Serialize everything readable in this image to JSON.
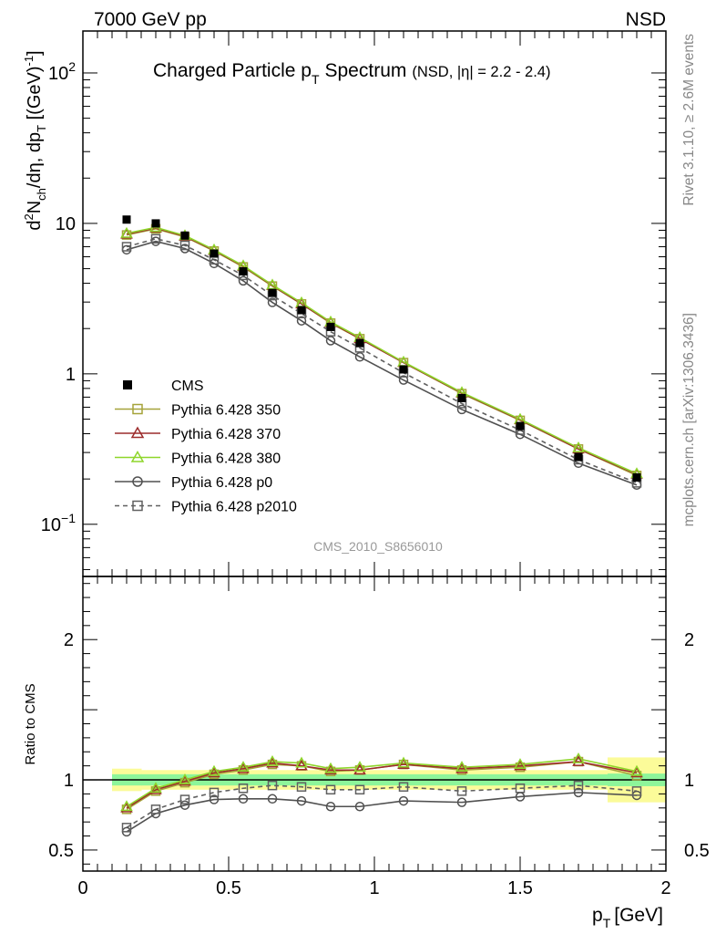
{
  "header": {
    "energy": "7000 GeV pp",
    "process": "NSD"
  },
  "side": {
    "rivet": "Rivet 3.1.10, ≥ 2.6M events",
    "mcplots": "mcplots.cern.ch [arXiv:1306.3436]"
  },
  "chart_data": {
    "type": "scatter",
    "title": "Charged Particle p_T Spectrum (NSD, |η| = 2.2 - 2.4)",
    "title_main": "Charged Particle p",
    "title_main_sub": "T",
    "title_main_tail": "Spectrum",
    "title_extra": "(NSD, |η| = 2.2 - 2.4)",
    "analysis_id": "CMS_2010_S8656010",
    "xlabel": "p_T [GeV]",
    "ylabel": "d²N_ch/dη, dp_T [(GeV)⁻¹]",
    "ratio_ylabel": "Ratio to CMS",
    "xlim": [
      0,
      2
    ],
    "ylim_main": [
      0.045,
      190
    ],
    "ylog_main": true,
    "ylim_ratio": [
      0.35,
      2.45
    ],
    "x_ticks": [
      "0",
      "0.5",
      "1",
      "1.5",
      "2"
    ],
    "y_ticks_main": [
      "10⁻¹",
      "1",
      "10",
      "10²"
    ],
    "y_ticks_ratio": [
      "0.5",
      "1",
      "2"
    ],
    "legend_position": "lower-left",
    "x": [
      0.15,
      0.25,
      0.35,
      0.45,
      0.55,
      0.65,
      0.75,
      0.85,
      0.95,
      1.1,
      1.3,
      1.5,
      1.7,
      1.9
    ],
    "band_edges": [
      0.1,
      0.2,
      0.3,
      0.4,
      0.5,
      0.6,
      0.7,
      0.8,
      0.9,
      1.0,
      1.2,
      1.4,
      1.6,
      1.8,
      2.0
    ],
    "cms": {
      "name": "CMS",
      "values": [
        10.6,
        10.0,
        8.3,
        6.3,
        4.8,
        3.45,
        2.65,
        2.05,
        1.6,
        1.07,
        0.69,
        0.45,
        0.28,
        0.205
      ],
      "stat_band_halfwidth": [
        0.04,
        0.04,
        0.04,
        0.04,
        0.04,
        0.04,
        0.04,
        0.04,
        0.04,
        0.04,
        0.04,
        0.04,
        0.04,
        0.045
      ],
      "total_band_halfwidth": [
        0.08,
        0.07,
        0.07,
        0.07,
        0.07,
        0.07,
        0.07,
        0.07,
        0.07,
        0.07,
        0.07,
        0.07,
        0.07,
        0.16
      ]
    },
    "series": [
      {
        "name": "Pythia 6.428 350",
        "color": "#a5a33a",
        "marker": "square",
        "dashed": false,
        "ratio": [
          0.79,
          0.92,
          0.98,
          1.04,
          1.07,
          1.11,
          1.1,
          1.06,
          1.07,
          1.11,
          1.07,
          1.09,
          1.13,
          1.03
        ]
      },
      {
        "name": "Pythia 6.428 370",
        "color": "#9c2b2b",
        "marker": "triangle",
        "dashed": false,
        "ratio": [
          0.8,
          0.93,
          0.99,
          1.05,
          1.08,
          1.12,
          1.1,
          1.07,
          1.07,
          1.11,
          1.08,
          1.1,
          1.13,
          1.05
        ]
      },
      {
        "name": "Pythia 6.428 380",
        "color": "#8ed62a",
        "marker": "triangle",
        "dashed": false,
        "ratio": [
          0.81,
          0.94,
          1.0,
          1.06,
          1.09,
          1.13,
          1.12,
          1.08,
          1.09,
          1.12,
          1.09,
          1.11,
          1.15,
          1.06
        ]
      },
      {
        "name": "Pythia 6.428 p0",
        "color": "#505050",
        "marker": "circle",
        "dashed": false,
        "ratio": [
          0.63,
          0.76,
          0.82,
          0.86,
          0.865,
          0.865,
          0.85,
          0.81,
          0.81,
          0.85,
          0.84,
          0.88,
          0.91,
          0.89
        ]
      },
      {
        "name": "Pythia 6.428 p2010",
        "color": "#606060",
        "marker": "square",
        "dashed": true,
        "ratio": [
          0.66,
          0.79,
          0.86,
          0.91,
          0.94,
          0.96,
          0.95,
          0.93,
          0.93,
          0.95,
          0.92,
          0.94,
          0.96,
          0.92
        ]
      }
    ]
  }
}
